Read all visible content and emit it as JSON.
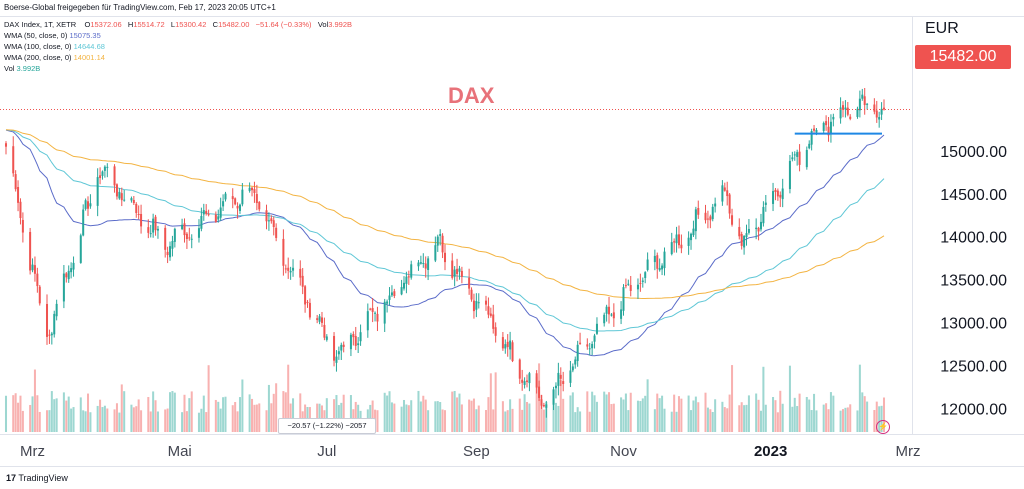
{
  "source_line": "Boerse-Global freigegeben für TradingView.com, Feb 17, 2023 20:05 UTC+1",
  "legend": {
    "symbol": "DAX Index, 1T, XETR",
    "ohlc": {
      "o_label": "O",
      "o": "15372.06",
      "h_label": "H",
      "h": "15514.72",
      "l_label": "L",
      "l": "15300.42",
      "c_label": "C",
      "c": "15482.00",
      "chg": "−51.64 (−0.33%)",
      "vol_label": "Vol",
      "vol": "3.992B"
    },
    "indicators": [
      {
        "label": "WMA (50, close, 0)",
        "value": "15075.35",
        "color": "#5b6cc9"
      },
      {
        "label": "WMA (100, close, 0)",
        "value": "14644.68",
        "color": "#5fc7d6"
      },
      {
        "label": "WMA (200, close, 0)",
        "value": "14001.14",
        "color": "#f3b443"
      },
      {
        "label": "Vol",
        "value": "3.992B",
        "color": "#26a69a"
      }
    ]
  },
  "annotation_title": "DAX",
  "currency": "EUR",
  "last_price": "15482.00",
  "tooltip": "−20.57 (−1.22%) −2057",
  "footer": "TradingView",
  "colors": {
    "up": "#26a69a",
    "down": "#ef5350",
    "wma50": "#5b6cc9",
    "wma100": "#5fc7d6",
    "wma200": "#f3b443",
    "resistance": "#1e88e5"
  },
  "chart_data": {
    "type": "candlestick",
    "title": "DAX",
    "y_unit": "EUR",
    "ylim": [
      11750,
      16500
    ],
    "y_ticks": [
      "15000.00",
      "14500.00",
      "14000.00",
      "13500.00",
      "13000.00",
      "12500.00",
      "12000.00"
    ],
    "x_ticks": [
      "Mrz",
      "Mai",
      "Jul",
      "Sep",
      "Nov",
      "2023",
      "Mrz"
    ],
    "x_range": [
      "2022-02-18",
      "2023-02-17"
    ],
    "grid": false,
    "price_key_points": [
      {
        "date": "2022-02-18",
        "close": 15050
      },
      {
        "date": "2022-03-07",
        "close": 12830
      },
      {
        "date": "2022-03-29",
        "close": 14800
      },
      {
        "date": "2022-04-25",
        "close": 13900
      },
      {
        "date": "2022-05-30",
        "close": 14550
      },
      {
        "date": "2022-07-05",
        "close": 12600
      },
      {
        "date": "2022-08-16",
        "close": 13950
      },
      {
        "date": "2022-09-29",
        "close": 12050
      },
      {
        "date": "2022-11-01",
        "close": 13300
      },
      {
        "date": "2022-12-13",
        "close": 14500
      },
      {
        "date": "2022-12-20",
        "close": 13900
      },
      {
        "date": "2023-01-18",
        "close": 15200
      },
      {
        "date": "2023-02-02",
        "close": 15500
      },
      {
        "date": "2023-02-17",
        "close": 15482
      }
    ],
    "wma_series": [
      {
        "name": "WMA (50, close, 0)",
        "last": 15075.35
      },
      {
        "name": "WMA (100, close, 0)",
        "last": 14644.68
      },
      {
        "name": "WMA (200, close, 0)",
        "last": 14001.14
      }
    ],
    "resistance_level": 15200,
    "last_close": 15482.0
  }
}
